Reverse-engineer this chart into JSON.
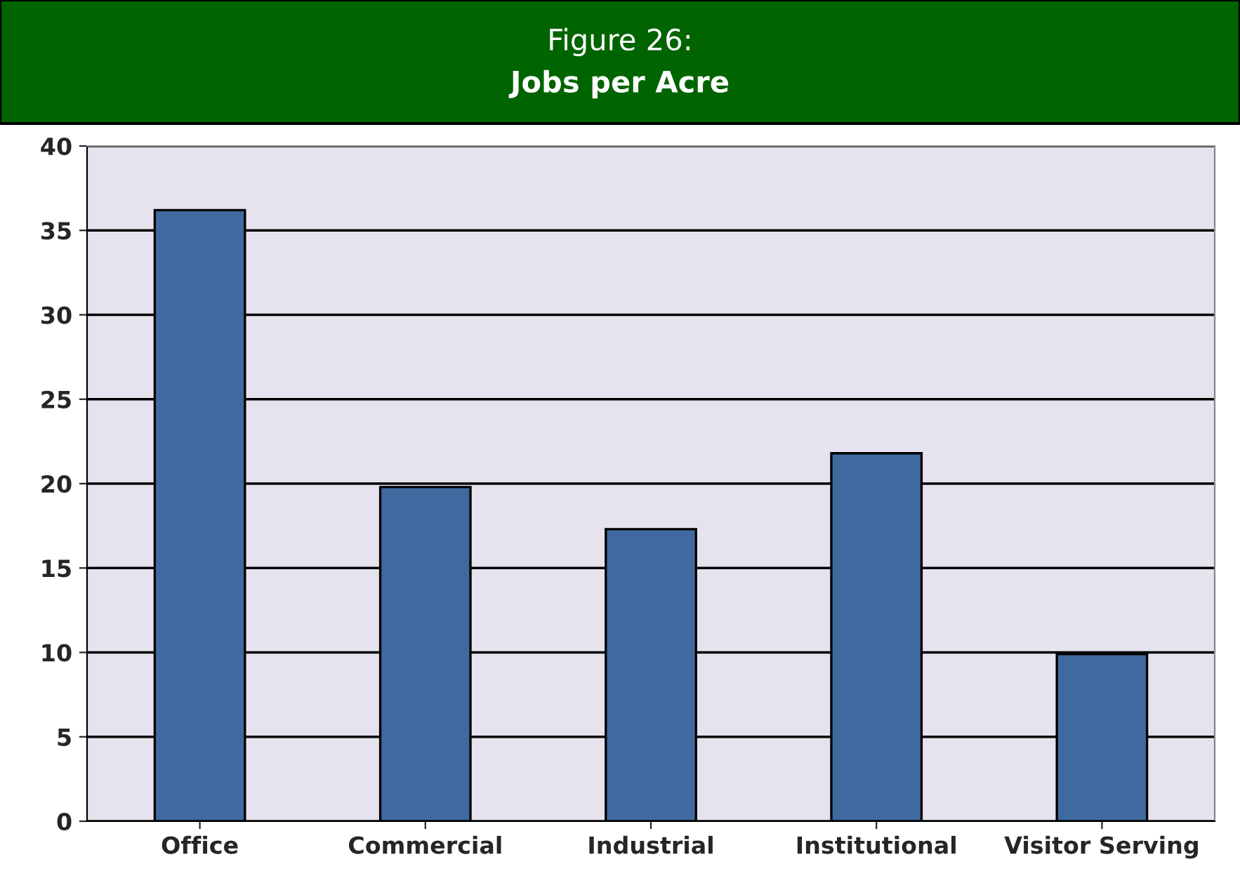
{
  "chart_data": {
    "type": "bar",
    "title": "Figure 26:",
    "subtitle": "Jobs per Acre",
    "categories": [
      "Office",
      "Commercial",
      "Industrial",
      "Institutional",
      "Visitor Serving"
    ],
    "values": [
      36.2,
      19.8,
      17.3,
      21.8,
      9.9
    ],
    "color": "#3f6aa0",
    "ylim": [
      0,
      40
    ],
    "yticks": [
      0,
      5,
      10,
      15,
      20,
      25,
      30,
      35,
      40
    ],
    "grid": "y"
  }
}
